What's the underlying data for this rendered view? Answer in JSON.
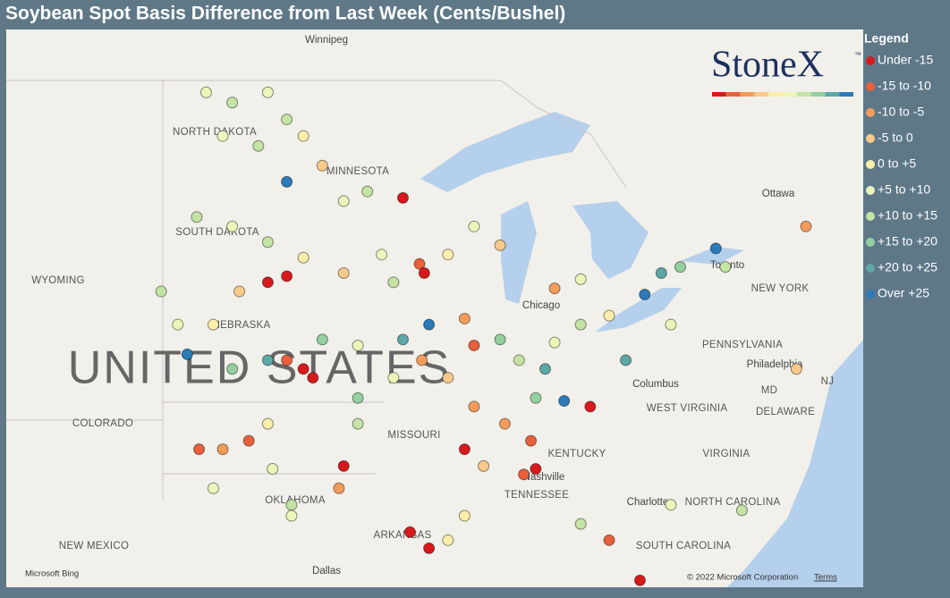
{
  "title": "Soybean Spot Basis Difference from Last Week (Cents/Bushel)",
  "logo": {
    "text": "StoneX",
    "mark": "™"
  },
  "map": {
    "labels": [
      "Winnipeg",
      "NORTH DAKOTA",
      "MINNESOTA",
      "SOUTH DAKOTA",
      "WYOMING",
      "NEBRASKA",
      "COLORADO",
      "MISSOURI",
      "OKLAHOMA",
      "NEW MEXICO",
      "ARKANSAS",
      "Dallas",
      "KENTUCKY",
      "TENNESSEE",
      "Nashville",
      "Chicago",
      "Columbus",
      "Ottawa",
      "Toronto",
      "NEW YORK",
      "PENNSYLVANIA",
      "Philadelphia",
      "MD",
      "DELAWARE",
      "WEST VIRGINIA",
      "VIRGINIA",
      "NORTH CAROLINA",
      "Charlotte",
      "SOUTH CAROLINA",
      "NJ",
      "UNITED STATES"
    ],
    "provider": "Microsoft Bing",
    "attribution": "© 2022 Microsoft Corporation",
    "terms": "Terms"
  },
  "legend": {
    "title": "Legend",
    "classes": [
      {
        "label": "Under -15",
        "color": "#d7191c"
      },
      {
        "label": "-15 to -10",
        "color": "#e8603c"
      },
      {
        "label": "-10 to -5",
        "color": "#f39c5a"
      },
      {
        "label": "-5 to 0",
        "color": "#f9c98a"
      },
      {
        "label": "0 to +5",
        "color": "#fdeeaa"
      },
      {
        "label": "+5 to +10",
        "color": "#edf5b8"
      },
      {
        "label": "+10 to +15",
        "color": "#c4e3a4"
      },
      {
        "label": "+15 to +20",
        "color": "#94cf9e"
      },
      {
        "label": "+20 to +25",
        "color": "#5ea7a7"
      },
      {
        "label": "Over +25",
        "color": "#2b7bb9"
      }
    ]
  },
  "points": [
    [
      -100.6,
      48.6,
      5
    ],
    [
      -99.5,
      48.3,
      6
    ],
    [
      -98.0,
      48.6,
      5
    ],
    [
      -97.2,
      47.8,
      6
    ],
    [
      -99.9,
      47.3,
      5
    ],
    [
      -98.4,
      47.0,
      6
    ],
    [
      -96.5,
      47.3,
      4
    ],
    [
      -97.2,
      45.9,
      9
    ],
    [
      -95.7,
      46.4,
      3
    ],
    [
      -94.8,
      45.3,
      5
    ],
    [
      -93.8,
      45.6,
      6
    ],
    [
      -92.3,
      45.4,
      0
    ],
    [
      -99.5,
      44.5,
      5
    ],
    [
      -98.0,
      44.0,
      6
    ],
    [
      -101.0,
      44.8,
      6
    ],
    [
      -96.5,
      43.5,
      4
    ],
    [
      -94.8,
      43.0,
      3
    ],
    [
      -93.2,
      43.6,
      5
    ],
    [
      -91.6,
      43.3,
      1
    ],
    [
      -91.4,
      43.0,
      0
    ],
    [
      -90.4,
      43.6,
      4
    ],
    [
      -89.3,
      44.5,
      5
    ],
    [
      -88.2,
      43.9,
      3
    ],
    [
      -91.2,
      41.3,
      9
    ],
    [
      -89.7,
      41.5,
      2
    ],
    [
      -89.3,
      40.6,
      1
    ],
    [
      -88.2,
      40.8,
      7
    ],
    [
      -87.4,
      40.1,
      6
    ],
    [
      -86.3,
      39.8,
      8
    ],
    [
      -85.9,
      40.7,
      5
    ],
    [
      -84.8,
      41.3,
      6
    ],
    [
      -83.6,
      41.6,
      4
    ],
    [
      -82.9,
      40.1,
      8
    ],
    [
      -82.1,
      42.3,
      9
    ],
    [
      -81.4,
      43.0,
      8
    ],
    [
      -80.6,
      43.2,
      7
    ],
    [
      -79.1,
      43.8,
      9
    ],
    [
      -78.7,
      43.2,
      6
    ],
    [
      -84.4,
      38.5,
      0
    ],
    [
      -85.5,
      38.7,
      9
    ],
    [
      -86.9,
      37.3,
      1
    ],
    [
      -88.0,
      37.9,
      2
    ],
    [
      -89.3,
      38.5,
      2
    ],
    [
      -89.7,
      37.0,
      0
    ],
    [
      -88.9,
      36.4,
      3
    ],
    [
      -86.7,
      36.3,
      0
    ],
    [
      -87.2,
      36.1,
      1
    ],
    [
      -89.7,
      34.6,
      4
    ],
    [
      -90.4,
      33.7,
      4
    ],
    [
      -91.2,
      33.4,
      0
    ],
    [
      -92.0,
      34.0,
      0
    ],
    [
      -82.3,
      32.2,
      0
    ],
    [
      -83.6,
      33.7,
      1
    ],
    [
      -84.8,
      34.3,
      6
    ],
    [
      -81.0,
      35.0,
      5
    ],
    [
      -78.0,
      34.8,
      6
    ],
    [
      -75.7,
      39.8,
      3
    ],
    [
      -75.3,
      44.5,
      2
    ],
    [
      -81.0,
      41.3,
      5
    ],
    [
      -86.7,
      38.8,
      7
    ],
    [
      -96.5,
      39.8,
      0
    ],
    [
      -96.1,
      39.5,
      0
    ],
    [
      -97.2,
      40.1,
      1
    ],
    [
      -98.0,
      40.1,
      8
    ],
    [
      -99.5,
      39.8,
      7
    ],
    [
      -101.4,
      40.3,
      9
    ],
    [
      -98.8,
      37.3,
      1
    ],
    [
      -99.9,
      37.0,
      2
    ],
    [
      -100.9,
      37.0,
      1
    ],
    [
      -100.3,
      35.6,
      5
    ],
    [
      -97.8,
      36.3,
      5
    ],
    [
      -97.0,
      35.0,
      6
    ],
    [
      -98.0,
      37.9,
      4
    ],
    [
      -94.8,
      36.4,
      0
    ],
    [
      -95.0,
      35.6,
      2
    ],
    [
      -97.0,
      34.6,
      5
    ],
    [
      -94.2,
      37.9,
      6
    ],
    [
      -94.2,
      38.8,
      7
    ],
    [
      -92.7,
      39.5,
      5
    ],
    [
      -91.5,
      40.1,
      2
    ],
    [
      -90.4,
      39.5,
      3
    ],
    [
      -102.5,
      42.4,
      6
    ],
    [
      -101.8,
      41.3,
      5
    ],
    [
      -100.3,
      41.3,
      4
    ],
    [
      -99.2,
      42.4,
      3
    ],
    [
      -98.0,
      42.7,
      0
    ],
    [
      -97.2,
      42.9,
      0
    ],
    [
      -92.7,
      42.7,
      6
    ],
    [
      -94.2,
      40.6,
      5
    ],
    [
      -95.7,
      40.8,
      7
    ],
    [
      -92.3,
      40.8,
      8
    ],
    [
      -85.9,
      42.5,
      2
    ],
    [
      -84.8,
      42.8,
      5
    ]
  ]
}
